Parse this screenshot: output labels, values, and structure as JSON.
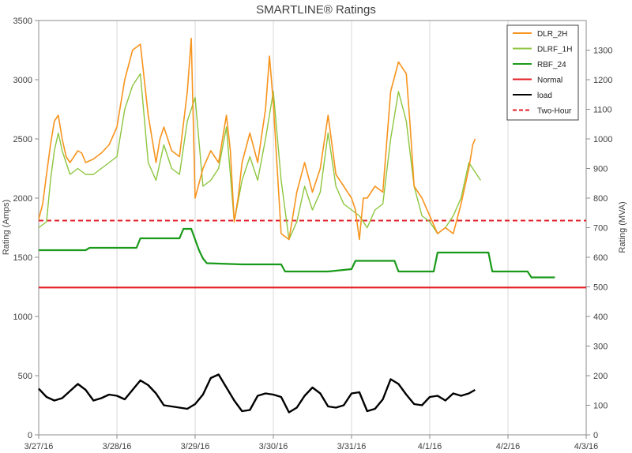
{
  "chart_data": {
    "type": "line",
    "title": "SMARTLINE® Ratings",
    "ylabel": "Rating (Amps)",
    "y2label": "Rating (MVA)",
    "ylim": [
      0,
      3500
    ],
    "y2lim": [
      0,
      1400
    ],
    "yticks": [
      0,
      500,
      1000,
      1500,
      2000,
      2500,
      3000,
      3500
    ],
    "y2ticks": [
      0,
      100,
      200,
      300,
      400,
      500,
      600,
      700,
      800,
      900,
      1000,
      1100,
      1200,
      1300
    ],
    "xlim": [
      0,
      7
    ],
    "x_tick_labels": [
      "3/27/16",
      "3/28/16",
      "3/29/16",
      "3/30/16",
      "3/31/16",
      "4/1/16",
      "4/2/16",
      "4/3/16"
    ],
    "grid": "vertical",
    "legend_position": "top-right",
    "colors": {
      "DLR_2H": "#f7941d",
      "DLRF_1H": "#8dc63f",
      "RBF_24": "#1a9a1a",
      "Normal": "#e31e24",
      "load": "#000000",
      "Two-Hour": "#e31e24"
    },
    "series": [
      {
        "name": "DLR_2H",
        "style": "solid",
        "x": [
          0,
          0.05,
          0.1,
          0.15,
          0.2,
          0.25,
          0.3,
          0.35,
          0.4,
          0.45,
          0.5,
          0.55,
          0.6,
          0.7,
          0.8,
          0.9,
          1.0,
          1.1,
          1.2,
          1.3,
          1.4,
          1.5,
          1.55,
          1.6,
          1.7,
          1.8,
          1.9,
          1.95,
          2.0,
          2.1,
          2.2,
          2.3,
          2.4,
          2.45,
          2.5,
          2.55,
          2.6,
          2.7,
          2.8,
          2.9,
          2.95,
          3.0,
          3.05,
          3.1,
          3.2,
          3.3,
          3.4,
          3.5,
          3.6,
          3.7,
          3.8,
          3.9,
          4.0,
          4.05,
          4.1,
          4.15,
          4.2,
          4.3,
          4.4,
          4.5,
          4.6,
          4.7,
          4.75,
          4.8,
          4.9,
          5.0,
          5.1,
          5.2,
          5.3,
          5.4,
          5.5,
          5.55,
          5.58
        ],
        "values": [
          1820,
          1950,
          2200,
          2450,
          2650,
          2700,
          2500,
          2350,
          2300,
          2350,
          2400,
          2380,
          2300,
          2330,
          2380,
          2450,
          2600,
          3000,
          3250,
          3300,
          2700,
          2300,
          2500,
          2600,
          2400,
          2350,
          2900,
          3350,
          2000,
          2250,
          2400,
          2300,
          2700,
          2400,
          1800,
          2000,
          2300,
          2550,
          2300,
          2750,
          3200,
          2800,
          2250,
          1700,
          1650,
          2050,
          2300,
          2050,
          2250,
          2700,
          2200,
          2100,
          2000,
          1900,
          1650,
          2000,
          2000,
          2100,
          2050,
          2900,
          3150,
          3050,
          2600,
          2100,
          2000,
          1850,
          1700,
          1750,
          1700,
          1950,
          2250,
          2450,
          2500
        ]
      },
      {
        "name": "DLRF_1H",
        "style": "solid",
        "x": [
          0,
          0.1,
          0.15,
          0.2,
          0.25,
          0.3,
          0.4,
          0.5,
          0.6,
          0.7,
          0.8,
          0.9,
          1.0,
          1.1,
          1.2,
          1.3,
          1.4,
          1.5,
          1.6,
          1.7,
          1.8,
          1.9,
          2.0,
          2.1,
          2.2,
          2.3,
          2.4,
          2.5,
          2.6,
          2.7,
          2.8,
          2.9,
          3.0,
          3.1,
          3.2,
          3.3,
          3.4,
          3.5,
          3.6,
          3.7,
          3.8,
          3.9,
          4.0,
          4.1,
          4.2,
          4.3,
          4.4,
          4.5,
          4.6,
          4.7,
          4.8,
          4.9,
          5.0,
          5.1,
          5.2,
          5.3,
          5.4,
          5.5,
          5.6,
          5.65
        ],
        "values": [
          1750,
          1800,
          2150,
          2400,
          2550,
          2400,
          2200,
          2250,
          2200,
          2200,
          2250,
          2300,
          2350,
          2750,
          2950,
          3050,
          2300,
          2150,
          2450,
          2250,
          2200,
          2650,
          2850,
          2100,
          2150,
          2250,
          2600,
          1800,
          2150,
          2350,
          2150,
          2500,
          2900,
          2150,
          1650,
          1800,
          2100,
          1900,
          2050,
          2550,
          2100,
          1950,
          1900,
          1850,
          1750,
          1900,
          1950,
          2500,
          2900,
          2650,
          2100,
          1850,
          1800,
          1700,
          1750,
          1850,
          2000,
          2300,
          2200,
          2150
        ]
      },
      {
        "name": "RBF_24",
        "style": "solid",
        "x": [
          0,
          0.6,
          0.65,
          1.25,
          1.3,
          1.8,
          1.85,
          1.95,
          2.0,
          2.05,
          2.1,
          2.15,
          2.6,
          3.1,
          3.15,
          3.7,
          4.0,
          4.05,
          4.55,
          4.6,
          5.05,
          5.1,
          5.4,
          5.45,
          5.75,
          5.8,
          6.25,
          6.3,
          6.6
        ],
        "values": [
          1560,
          1560,
          1580,
          1580,
          1660,
          1660,
          1740,
          1740,
          1650,
          1560,
          1490,
          1450,
          1440,
          1440,
          1380,
          1380,
          1400,
          1470,
          1470,
          1380,
          1380,
          1540,
          1540,
          1540,
          1540,
          1380,
          1380,
          1330,
          1330
        ]
      },
      {
        "name": "Normal",
        "style": "solid",
        "x": [
          0,
          7
        ],
        "values": [
          1245,
          1245
        ]
      },
      {
        "name": "load",
        "style": "solid",
        "x": [
          0,
          0.1,
          0.2,
          0.3,
          0.4,
          0.5,
          0.6,
          0.7,
          0.8,
          0.9,
          1.0,
          1.1,
          1.2,
          1.3,
          1.4,
          1.5,
          1.6,
          1.7,
          1.8,
          1.9,
          2.0,
          2.1,
          2.2,
          2.3,
          2.4,
          2.5,
          2.6,
          2.7,
          2.8,
          2.9,
          3.0,
          3.1,
          3.2,
          3.3,
          3.4,
          3.5,
          3.6,
          3.7,
          3.8,
          3.9,
          4.0,
          4.1,
          4.2,
          4.3,
          4.4,
          4.5,
          4.6,
          4.7,
          4.8,
          4.9,
          5.0,
          5.1,
          5.2,
          5.3,
          5.4,
          5.5,
          5.58
        ],
        "values": [
          390,
          320,
          290,
          310,
          370,
          430,
          380,
          290,
          310,
          340,
          330,
          300,
          380,
          460,
          420,
          350,
          250,
          240,
          230,
          220,
          260,
          340,
          480,
          510,
          400,
          290,
          200,
          210,
          330,
          350,
          340,
          320,
          190,
          230,
          330,
          400,
          350,
          240,
          230,
          250,
          350,
          360,
          200,
          220,
          300,
          470,
          430,
          340,
          260,
          250,
          320,
          330,
          290,
          350,
          330,
          350,
          380
        ]
      },
      {
        "name": "Two-Hour",
        "style": "dashed",
        "x": [
          0,
          7
        ],
        "values": [
          1810,
          1810
        ]
      }
    ]
  }
}
